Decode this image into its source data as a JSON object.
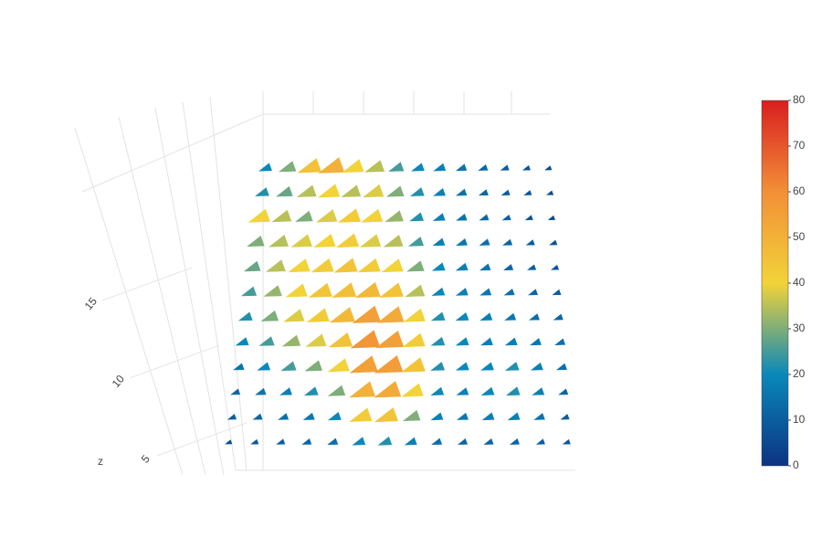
{
  "chart_data": {
    "type": "cone",
    "zlabel": "z",
    "zlim": [
      4,
      16
    ],
    "zticks": [
      5,
      10,
      15
    ],
    "colorscale": [
      "#0c3383",
      "#0a88ba",
      "#f2d338",
      "#f28f38",
      "#d91e1e"
    ],
    "clim": [
      0,
      80
    ],
    "cticks": [
      0,
      10,
      20,
      30,
      40,
      50,
      60,
      70,
      80
    ],
    "values": [
      [
        20,
        30,
        45,
        50,
        40,
        35,
        25,
        20,
        18,
        15,
        12,
        10,
        8,
        6
      ],
      [
        22,
        28,
        35,
        40,
        35,
        38,
        30,
        22,
        18,
        15,
        12,
        10,
        8,
        6
      ],
      [
        40,
        35,
        30,
        38,
        42,
        40,
        32,
        22,
        18,
        15,
        12,
        10,
        8,
        6
      ],
      [
        30,
        35,
        38,
        40,
        42,
        38,
        35,
        25,
        18,
        16,
        14,
        12,
        10,
        8
      ],
      [
        28,
        35,
        40,
        42,
        44,
        42,
        40,
        30,
        20,
        18,
        15,
        12,
        10,
        8
      ],
      [
        25,
        32,
        40,
        44,
        46,
        48,
        45,
        35,
        20,
        18,
        16,
        14,
        12,
        10
      ],
      [
        22,
        30,
        38,
        42,
        48,
        55,
        52,
        40,
        22,
        20,
        18,
        16,
        14,
        12
      ],
      [
        20,
        25,
        32,
        38,
        45,
        58,
        55,
        42,
        22,
        20,
        18,
        18,
        16,
        14
      ],
      [
        15,
        20,
        25,
        30,
        40,
        55,
        56,
        45,
        22,
        20,
        20,
        22,
        18,
        14
      ],
      [
        12,
        15,
        18,
        22,
        30,
        50,
        52,
        40,
        20,
        18,
        20,
        22,
        18,
        12
      ],
      [
        10,
        12,
        14,
        16,
        20,
        42,
        44,
        30,
        18,
        16,
        18,
        18,
        15,
        10
      ],
      [
        6,
        8,
        10,
        12,
        14,
        20,
        22,
        18,
        14,
        12,
        12,
        12,
        10,
        8
      ]
    ]
  }
}
